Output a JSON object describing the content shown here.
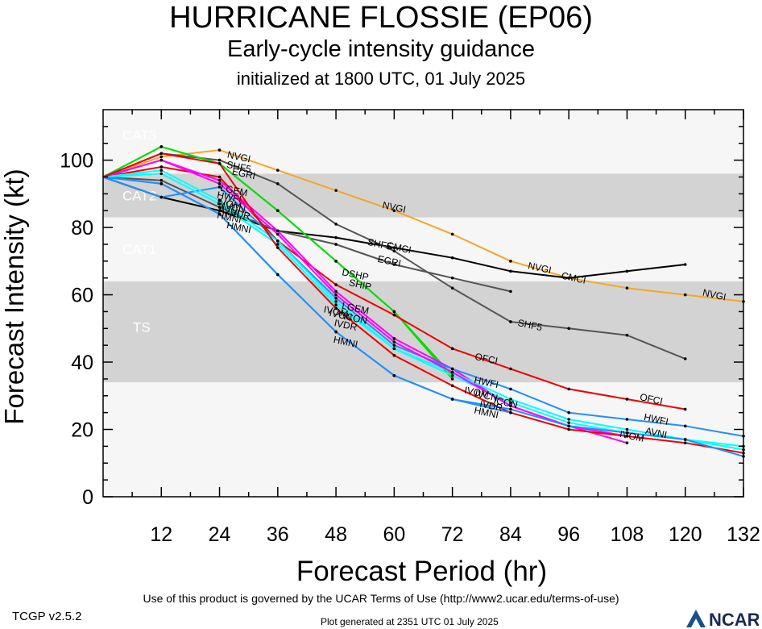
{
  "title": "HURRICANE FLOSSIE (EP06)",
  "subtitle": "Early-cycle intensity guidance",
  "subtitle2": "initialized at 1800 UTC, 01 July 2025",
  "footer": {
    "terms": "Use of this product is governed by the UCAR Terms of Use (http://www2.ucar.edu/terms-of-use)",
    "version": "TCGP v2.5.2",
    "generated": "Plot generated at 2351 UTC   01 July 2025",
    "logo_text": "NCAR"
  },
  "chart_data": {
    "type": "line",
    "title": "HURRICANE FLOSSIE (EP06)",
    "xlabel": "Forecast Period (hr)",
    "ylabel": "Forecast Intensity (kt)",
    "xlim": [
      0,
      132
    ],
    "ylim": [
      0,
      115
    ],
    "xticks": [
      12,
      24,
      36,
      48,
      60,
      72,
      84,
      96,
      108,
      120,
      132
    ],
    "yticks": [
      0,
      20,
      40,
      60,
      80,
      100
    ],
    "grid": false,
    "bands": [
      {
        "name": "TS",
        "from": 34,
        "to": 64,
        "color": "#d3d3d3"
      },
      {
        "name": "CAT1",
        "from": 64,
        "to": 83,
        "color": "#f6f6f6"
      },
      {
        "name": "CAT2",
        "from": 83,
        "to": 96,
        "color": "#d3d3d3"
      },
      {
        "name": "CAT3",
        "from": 96,
        "to": 113,
        "color": "#f6f6f6"
      }
    ],
    "below_band_color": "#f6f6f6",
    "series": [
      {
        "name": "NVGI",
        "color": "#f5a623",
        "x": [
          0,
          12,
          24,
          36,
          48,
          60,
          72,
          84,
          96,
          108,
          120,
          132
        ],
        "y": [
          95,
          101,
          103,
          97,
          91,
          85,
          78,
          70,
          65,
          62,
          60,
          58
        ],
        "labels": [
          {
            "x": 28,
            "y": 101
          },
          {
            "x": 60,
            "y": 86
          },
          {
            "x": 90,
            "y": 68
          },
          {
            "x": 126,
            "y": 60
          }
        ]
      },
      {
        "name": "CMCI",
        "color": "#000000",
        "x": [
          0,
          12,
          24,
          36,
          48,
          60,
          72,
          84,
          96,
          108,
          120
        ],
        "y": [
          95,
          89,
          85,
          79,
          77,
          74,
          71,
          67,
          65,
          67,
          69
        ],
        "labels": [
          {
            "x": 61,
            "y": 74
          },
          {
            "x": 97,
            "y": 65
          }
        ]
      },
      {
        "name": "SHF5",
        "color": "#555555",
        "x": [
          0,
          12,
          24,
          36,
          48,
          60,
          72,
          84,
          96,
          108,
          120
        ],
        "y": [
          95,
          102,
          100,
          93,
          81,
          73,
          62,
          52,
          50,
          48,
          41
        ],
        "labels": [
          {
            "x": 28,
            "y": 98
          },
          {
            "x": 57,
            "y": 75
          },
          {
            "x": 88,
            "y": 51
          }
        ]
      },
      {
        "name": "EGRI",
        "color": "#555555",
        "x": [
          0,
          12,
          24,
          36,
          48,
          60,
          72,
          84
        ],
        "y": [
          95,
          94,
          86,
          79,
          75,
          69,
          65,
          61
        ],
        "labels": [
          {
            "x": 29,
            "y": 96
          },
          {
            "x": 59,
            "y": 70
          }
        ]
      },
      {
        "name": "DSHP",
        "color": "#00dd00",
        "x": [
          0,
          12,
          24,
          36,
          48,
          60,
          72
        ],
        "y": [
          95,
          104,
          99,
          85,
          70,
          55,
          36
        ],
        "labels": [
          {
            "x": 52,
            "y": 66
          }
        ]
      },
      {
        "name": "SHIP",
        "color": "#00dd00",
        "x": [
          0,
          12,
          24,
          36,
          48,
          60,
          72
        ],
        "y": [
          95,
          104,
          99,
          85,
          70,
          55,
          35
        ],
        "labels": [
          {
            "x": 53,
            "y": 63
          }
        ]
      },
      {
        "name": "OFCI",
        "color": "#ee0000",
        "x": [
          0,
          12,
          24,
          36,
          48,
          60,
          72,
          84,
          96,
          108,
          120
        ],
        "y": [
          95,
          98,
          95,
          76,
          63,
          54,
          44,
          38,
          32,
          29,
          26
        ],
        "labels": [
          {
            "x": 79,
            "y": 41
          },
          {
            "x": 113,
            "y": 29
          }
        ]
      },
      {
        "name": "LGEM",
        "color": "#ff00ff",
        "x": [
          0,
          12,
          24,
          36,
          48,
          60,
          72,
          84,
          96,
          108
        ],
        "y": [
          95,
          100,
          94,
          79,
          61,
          47,
          38,
          27,
          21,
          16
        ],
        "labels": [
          {
            "x": 27,
            "y": 91
          },
          {
            "x": 52,
            "y": 56
          }
        ]
      },
      {
        "name": "HWFI",
        "color": "#1e90ff",
        "x": [
          0,
          12,
          24,
          36,
          48,
          60,
          72,
          84,
          96,
          108,
          120,
          132
        ],
        "y": [
          95,
          89,
          92,
          76,
          59,
          45,
          38,
          32,
          25,
          23,
          21,
          18
        ],
        "labels": [
          {
            "x": 26,
            "y": 89
          },
          {
            "x": 79,
            "y": 34
          },
          {
            "x": 114,
            "y": 23
          }
        ]
      },
      {
        "name": "IVCN",
        "color": "#00ffff",
        "x": [
          0,
          12,
          24,
          36,
          48,
          60,
          72,
          84,
          96,
          108,
          120,
          132
        ],
        "y": [
          95,
          97,
          88,
          76,
          58,
          44,
          37,
          29,
          23,
          20,
          17,
          15
        ],
        "labels": [
          {
            "x": 27,
            "y": 86
          },
          {
            "x": 49,
            "y": 54
          },
          {
            "x": 79,
            "y": 30
          }
        ]
      },
      {
        "name": "IVDR",
        "color": "#00ffff",
        "x": [
          0,
          12,
          24,
          36,
          48,
          60,
          72,
          84,
          96,
          108,
          120,
          132
        ],
        "y": [
          95,
          96,
          87,
          75,
          57,
          44,
          36,
          28,
          22,
          19,
          17,
          14
        ],
        "labels": [
          {
            "x": 28,
            "y": 84
          },
          {
            "x": 50,
            "y": 51
          },
          {
            "x": 80,
            "y": 27
          }
        ]
      },
      {
        "name": "ICON",
        "color": "#ff00ff",
        "x": [
          0,
          12,
          24,
          36,
          48,
          60,
          72,
          84,
          96,
          108
        ],
        "y": [
          95,
          100,
          93,
          78,
          60,
          46,
          37,
          27,
          21,
          18
        ],
        "labels": [
          {
            "x": 52,
            "y": 53
          },
          {
            "x": 83,
            "y": 28
          }
        ]
      },
      {
        "name": "IVOM",
        "color": "#ee0000",
        "x": [
          0,
          12,
          24,
          36,
          48,
          60,
          72,
          84,
          96,
          108,
          120,
          132
        ],
        "y": [
          95,
          102,
          99,
          74,
          56,
          42,
          33,
          25,
          20,
          18,
          16,
          13
        ],
        "labels": [
          {
            "x": 26,
            "y": 87
          },
          {
            "x": 48,
            "y": 55
          },
          {
            "x": 77,
            "y": 31
          },
          {
            "x": 109,
            "y": 18
          }
        ]
      },
      {
        "name": "AVNI",
        "color": "#1e90ff",
        "x": [
          0,
          12,
          24,
          36,
          48,
          60,
          72,
          84,
          96,
          108,
          120,
          132
        ],
        "y": [
          95,
          93,
          84,
          66,
          49,
          36,
          29,
          26,
          21,
          19,
          17,
          12
        ],
        "labels": [
          {
            "x": 26,
            "y": 85
          },
          {
            "x": 114,
            "y": 19
          }
        ]
      },
      {
        "name": "HMNI",
        "color": "#1e90ff",
        "x": [
          0,
          12,
          24,
          36,
          48,
          60,
          72,
          84
        ],
        "y": [
          95,
          93,
          84,
          66,
          49,
          36,
          29,
          25
        ],
        "labels": [
          {
            "x": 26,
            "y": 83
          },
          {
            "x": 28,
            "y": 80
          },
          {
            "x": 50,
            "y": 46
          },
          {
            "x": 79,
            "y": 25
          }
        ]
      }
    ]
  }
}
